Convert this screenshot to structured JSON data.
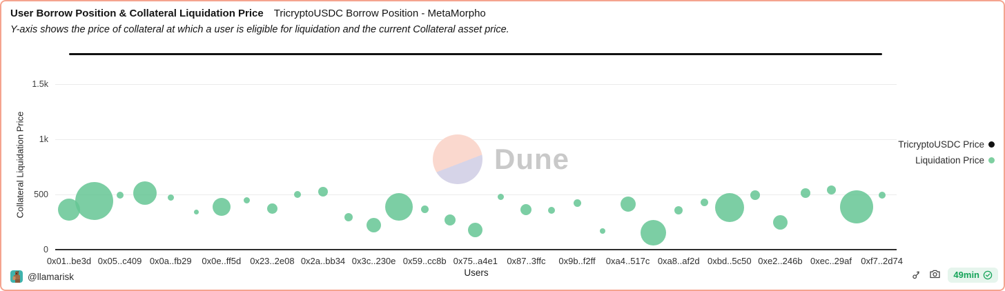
{
  "header": {
    "title": "User Borrow Position & Collateral Liquidation Price",
    "context": "TricryptoUSDC Borrow Position - MetaMorpho",
    "description": "Y-axis shows the price of collateral at which a user is eligible for liquidation and the current Collateral asset price."
  },
  "chart_data": {
    "type": "scatter",
    "variant": "bubble",
    "title": "User Borrow Position & Collateral Liquidation Price",
    "xlabel": "Users",
    "ylabel": "Collateral Liquidation Price",
    "grid": true,
    "legend_position": "right",
    "y_ticks": [
      {
        "label": "0",
        "value": 0
      },
      {
        "label": "500",
        "value": 500
      },
      {
        "label": "1k",
        "value": 1000
      },
      {
        "label": "1.5k",
        "value": 1500
      }
    ],
    "ylim": [
      0,
      1850
    ],
    "categories": [
      "0x01..be3d",
      "0x05..c409",
      "0x0a..fb29",
      "0x0e..ff5d",
      "0x23..2e08",
      "0x2a..bb34",
      "0x3c..230e",
      "0x59..cc8b",
      "0x75..a4e1",
      "0x87..3ffc",
      "0x9b..f2ff",
      "0xa4..517c",
      "0xa8..af2d",
      "0xbd..5c50",
      "0xe2..246b",
      "0xec..29af",
      "0xf7..2d74"
    ],
    "categories_note": "17 labels shown for 33 user positions (every 2nd position labeled)",
    "series": [
      {
        "name": "TricryptoUSDC Price",
        "type": "line",
        "color": "#111111",
        "value": 1770
      },
      {
        "name": "Liquidation Price",
        "type": "bubble",
        "color": "#7ecfa0",
        "fill": "rgba(101,198,148,0.85)",
        "points": [
          {
            "value": 365,
            "r": 16
          },
          {
            "value": 440,
            "r": 27.5
          },
          {
            "value": 495,
            "r": 5
          },
          {
            "value": 515,
            "r": 17
          },
          {
            "value": 470,
            "r": 4.5
          },
          {
            "value": 340,
            "r": 3.5
          },
          {
            "value": 390,
            "r": 13
          },
          {
            "value": 445,
            "r": 4.5
          },
          {
            "value": 370,
            "r": 7.5
          },
          {
            "value": 500,
            "r": 5
          },
          {
            "value": 525,
            "r": 7
          },
          {
            "value": 295,
            "r": 6
          },
          {
            "value": 220,
            "r": 10.5
          },
          {
            "value": 390,
            "r": 20
          },
          {
            "value": 365,
            "r": 5.5
          },
          {
            "value": 270,
            "r": 8
          },
          {
            "value": 180,
            "r": 10.5
          },
          {
            "value": 480,
            "r": 4.5
          },
          {
            "value": 365,
            "r": 8
          },
          {
            "value": 355,
            "r": 5
          },
          {
            "value": 420,
            "r": 5.5
          },
          {
            "value": 170,
            "r": 4
          },
          {
            "value": 415,
            "r": 11
          },
          {
            "value": 155,
            "r": 18.5
          },
          {
            "value": 355,
            "r": 6
          },
          {
            "value": 430,
            "r": 5.5
          },
          {
            "value": 380,
            "r": 21
          },
          {
            "value": 495,
            "r": 7
          },
          {
            "value": 245,
            "r": 10.5
          },
          {
            "value": 515,
            "r": 7
          },
          {
            "value": 540,
            "r": 6.5
          },
          {
            "value": 390,
            "r": 24
          },
          {
            "value": 495,
            "r": 5
          }
        ]
      }
    ]
  },
  "legend": {
    "items": [
      {
        "label": "TricryptoUSDC Price",
        "color": "#111111"
      },
      {
        "label": "Liquidation Price",
        "color": "#7ecfa0"
      }
    ]
  },
  "watermark": {
    "text": "Dune"
  },
  "footer": {
    "handle": "@llamarisk",
    "refresh_badge": "49min",
    "icons": [
      "fork-icon",
      "camera-icon",
      "check-badge-icon"
    ]
  },
  "colors": {
    "card_border": "#f5a48f",
    "bubble_green": "#7ecfa0",
    "price_black": "#111111",
    "badge_green": "#16a45a",
    "badge_bg": "#e6f5ed",
    "watermark_pink": "#fad8ce",
    "watermark_lavender": "#d6d4e8",
    "watermark_text": "#c9c9c9",
    "gridline": "#ebebeb"
  }
}
